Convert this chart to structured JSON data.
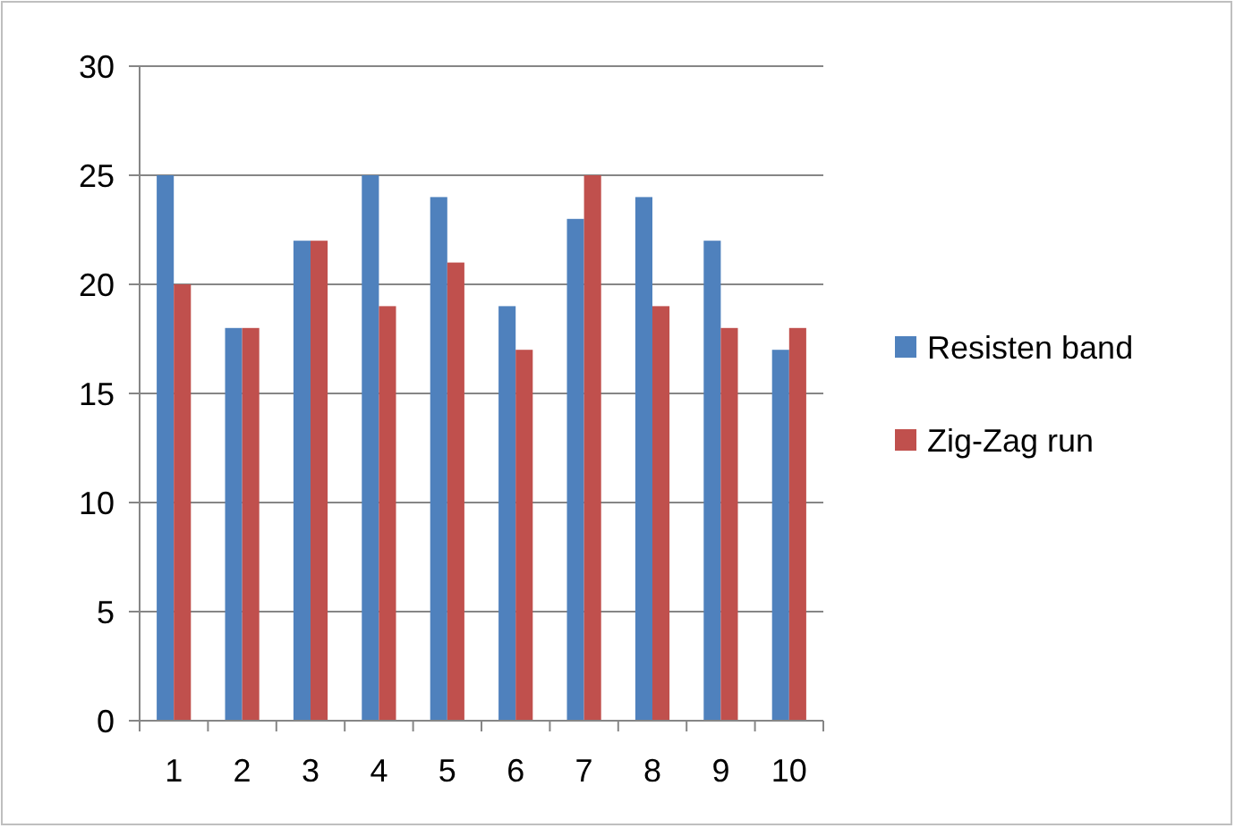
{
  "chart_data": {
    "type": "bar",
    "categories": [
      "1",
      "2",
      "3",
      "4",
      "5",
      "6",
      "7",
      "8",
      "9",
      "10"
    ],
    "series": [
      {
        "name": "Resisten band",
        "color": "#4f81bd",
        "values": [
          25,
          18,
          22,
          25,
          24,
          19,
          23,
          24,
          22,
          17
        ]
      },
      {
        "name": "Zig-Zag run",
        "color": "#c0504d",
        "values": [
          20,
          18,
          22,
          19,
          21,
          17,
          25,
          19,
          18,
          18
        ]
      }
    ],
    "ylim": [
      0,
      30
    ],
    "yticks": [
      0,
      5,
      10,
      15,
      20,
      25,
      30
    ],
    "grid": "y",
    "legend": "right"
  }
}
